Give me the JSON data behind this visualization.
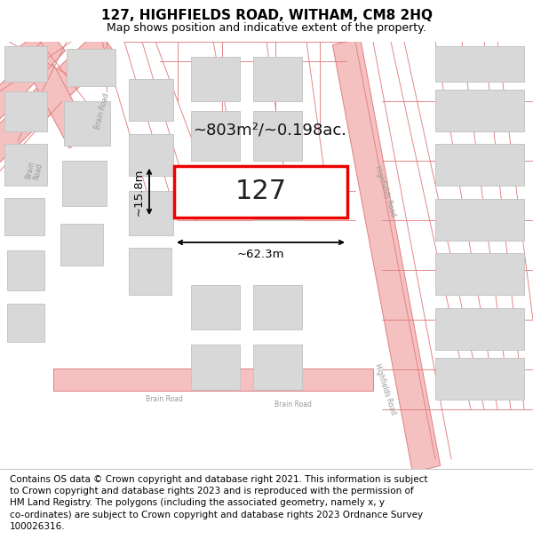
{
  "title": "127, HIGHFIELDS ROAD, WITHAM, CM8 2HQ",
  "subtitle": "Map shows position and indicative extent of the property.",
  "footer": "Contains OS data © Crown copyright and database right 2021. This information is subject\nto Crown copyright and database rights 2023 and is reproduced with the permission of\nHM Land Registry. The polygons (including the associated geometry, namely x, y\nco-ordinates) are subject to Crown copyright and database rights 2023 Ordnance Survey\n100026316.",
  "area_label": "~803m²/~0.198ac.",
  "width_label": "~62.3m",
  "height_label": "~15.8m",
  "property_number": "127",
  "bg_color": "#ffffff",
  "map_bg": "#f7f7f7",
  "road_fill": "#f5c0c0",
  "road_line": "#e08080",
  "bld_fill": "#d8d8d8",
  "bld_edge": "#c4c4c4",
  "prop_fill": "#ffffff",
  "prop_edge": "#ee0000",
  "prop_lw": 2.5,
  "title_fontsize": 11,
  "subtitle_fontsize": 9,
  "footer_fontsize": 7.5,
  "label_fontsize": 13,
  "num_fontsize": 22,
  "dim_fontsize": 9.5
}
